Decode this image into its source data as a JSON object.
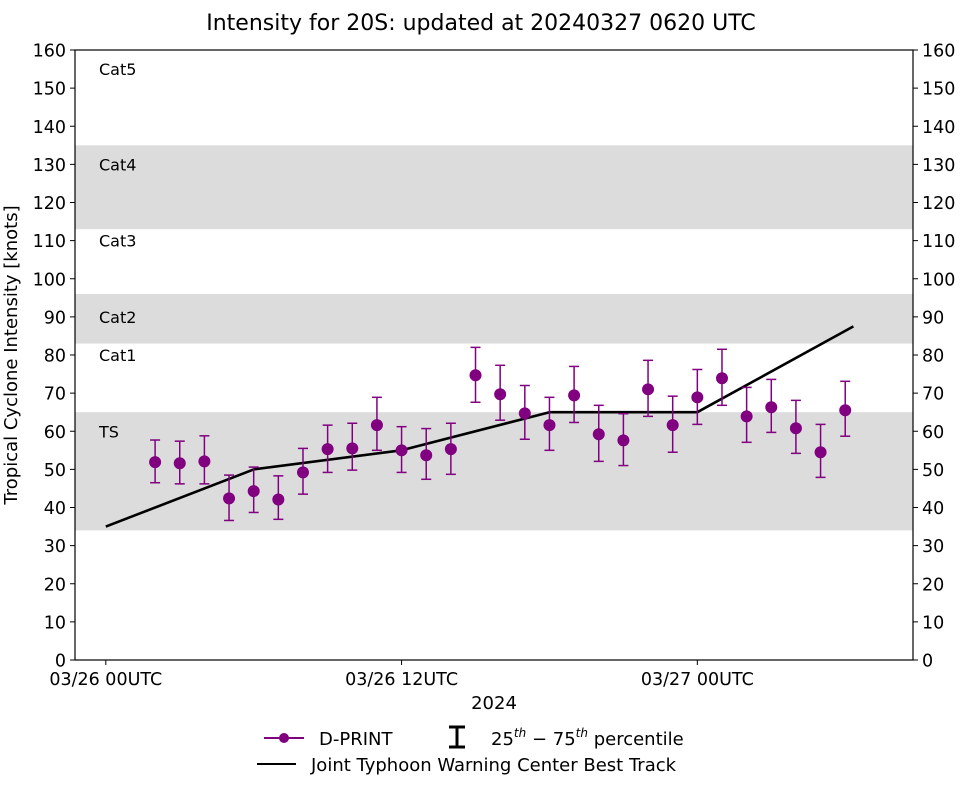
{
  "chart_data": {
    "type": "scatter",
    "title": "Intensity for 20S: updated at 20240327 0620 UTC",
    "xlabel": "2024",
    "ylabel": "Tropical Cyclone Intensity [knots]",
    "x_units": "hours since 03/26 00UTC",
    "xlim": [
      -1.25,
      32.75
    ],
    "ylim": [
      0,
      160
    ],
    "x_ticks": [
      {
        "value": 0,
        "label": "03/26 00UTC"
      },
      {
        "value": 12,
        "label": "03/26 12UTC"
      },
      {
        "value": 24,
        "label": "03/27 00UTC"
      }
    ],
    "y_ticks": [
      0,
      10,
      20,
      30,
      40,
      50,
      60,
      70,
      80,
      90,
      100,
      110,
      120,
      130,
      140,
      150,
      160
    ],
    "y_tick_labels": [
      "0",
      "10",
      "20",
      "30",
      "40",
      "50",
      "60",
      "70",
      "80",
      "90",
      "100",
      "110",
      "120",
      "130",
      "140",
      "150",
      "160"
    ],
    "grid": false,
    "category_bands": [
      {
        "name": "TS",
        "range": [
          34,
          65
        ],
        "shaded": true
      },
      {
        "name": "Cat1",
        "range": [
          65,
          83
        ],
        "shaded": false
      },
      {
        "name": "Cat2",
        "range": [
          83,
          96
        ],
        "shaded": true
      },
      {
        "name": "Cat3",
        "range": [
          96,
          113
        ],
        "shaded": false
      },
      {
        "name": "Cat4",
        "range": [
          113,
          135
        ],
        "shaded": true
      },
      {
        "name": "Cat5",
        "range": [
          135,
          160
        ],
        "shaded": false
      }
    ],
    "category_labels": [
      {
        "label": "Cat5",
        "y": 155
      },
      {
        "label": "Cat4",
        "y": 130
      },
      {
        "label": "Cat3",
        "y": 110
      },
      {
        "label": "Cat2",
        "y": 90
      },
      {
        "label": "Cat1",
        "y": 80
      },
      {
        "label": "TS",
        "y": 60
      }
    ],
    "series": [
      {
        "name": "D-PRINT",
        "color": "#800080",
        "x": [
          2,
          3,
          4,
          5,
          6,
          7,
          8,
          9,
          10,
          11,
          12,
          13,
          14,
          15,
          16,
          17,
          18,
          19,
          20,
          21,
          22,
          23,
          24,
          25,
          26,
          27,
          28,
          29,
          30
        ],
        "values": [
          51.9,
          51.6,
          52.1,
          42.4,
          44.3,
          42.1,
          49.2,
          55.3,
          55.5,
          61.6,
          55.0,
          53.7,
          55.3,
          74.7,
          69.7,
          64.7,
          61.6,
          69.4,
          59.2,
          57.6,
          71.0,
          61.6,
          68.9,
          73.9,
          63.9,
          66.3,
          60.8,
          54.5,
          65.5
        ],
        "p25": [
          46.5,
          46.2,
          46.2,
          36.6,
          38.7,
          36.9,
          43.5,
          49.2,
          49.8,
          55.0,
          49.2,
          47.4,
          48.7,
          67.6,
          62.9,
          57.9,
          55.0,
          62.3,
          52.1,
          51.0,
          63.9,
          54.5,
          61.8,
          66.8,
          57.1,
          59.7,
          54.2,
          47.9,
          58.7
        ],
        "p75": [
          57.7,
          57.4,
          58.8,
          48.5,
          50.6,
          48.3,
          55.5,
          61.6,
          62.1,
          68.9,
          61.2,
          60.7,
          62.1,
          82.0,
          77.3,
          72.0,
          68.9,
          77.0,
          66.8,
          64.6,
          78.6,
          69.2,
          76.2,
          81.5,
          71.5,
          73.6,
          68.1,
          61.8,
          73.1
        ]
      },
      {
        "name": "Joint Typhoon Warning Center Best Track",
        "color": "#000000",
        "x": [
          0,
          6,
          12,
          18,
          24,
          30.33
        ],
        "values": [
          35,
          50,
          55,
          65,
          65,
          87.5
        ]
      }
    ],
    "legend": {
      "placement": "bottom-center",
      "items": [
        {
          "label": "D-PRINT",
          "color": "#800080"
        },
        {
          "label_base1": "25",
          "label_sup1": "th",
          "label_mid": " − 75",
          "label_sup2": "th",
          "label_tail": " percentile"
        },
        {
          "label": "Joint Typhoon Warning Center Best Track",
          "color": "#000000"
        }
      ]
    },
    "band_color": "#dcdcdc"
  }
}
